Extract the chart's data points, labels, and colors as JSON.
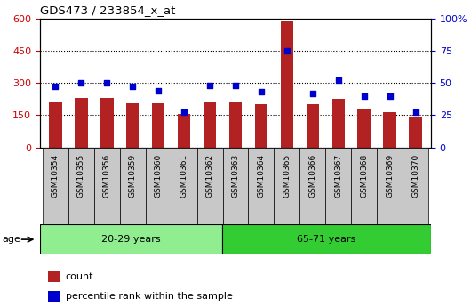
{
  "title": "GDS473 / 233854_x_at",
  "samples": [
    "GSM10354",
    "GSM10355",
    "GSM10356",
    "GSM10359",
    "GSM10360",
    "GSM10361",
    "GSM10362",
    "GSM10363",
    "GSM10364",
    "GSM10365",
    "GSM10366",
    "GSM10367",
    "GSM10368",
    "GSM10369",
    "GSM10370"
  ],
  "counts": [
    210,
    232,
    232,
    205,
    205,
    155,
    210,
    210,
    200,
    585,
    200,
    225,
    175,
    162,
    145
  ],
  "percentiles": [
    47,
    50,
    50,
    47,
    44,
    27,
    48,
    48,
    43,
    75,
    42,
    52,
    40,
    40,
    27
  ],
  "group1_label": "20-29 years",
  "group2_label": "65-71 years",
  "group1_count": 7,
  "group2_count": 8,
  "bar_color": "#B22222",
  "marker_color": "#0000CC",
  "group1_bg": "#90EE90",
  "group2_bg": "#33CC33",
  "xtick_bg": "#C8C8C8",
  "ylim_left": [
    0,
    600
  ],
  "ylim_right": [
    0,
    100
  ],
  "yticks_left": [
    0,
    150,
    300,
    450,
    600
  ],
  "yticks_right": [
    0,
    25,
    50,
    75,
    100
  ],
  "left_tick_color": "#CC0000",
  "right_tick_color": "#0000CC",
  "legend_count_label": "count",
  "legend_pct_label": "percentile rank within the sample",
  "age_label": "age"
}
